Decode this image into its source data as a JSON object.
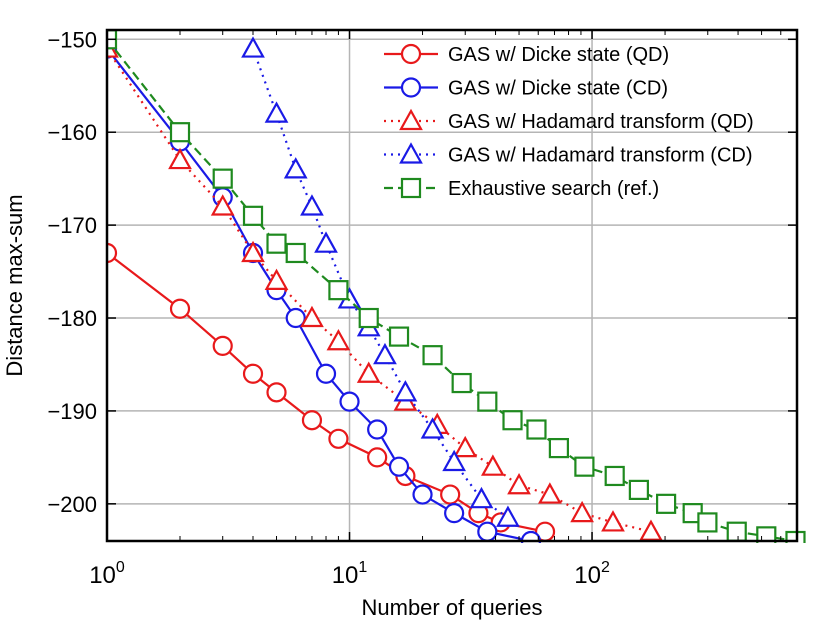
{
  "chart_data": {
    "type": "line",
    "title": "",
    "xlabel": "Number of queries",
    "ylabel": "Distance max-sum",
    "x_scale": "log",
    "xlim": [
      1,
      700
    ],
    "ylim": [
      -204,
      -149
    ],
    "grid": true,
    "legend_position": "top-right",
    "x_ticks": [
      {
        "value": 1,
        "base": "10",
        "exp": "0"
      },
      {
        "value": 10,
        "base": "10",
        "exp": "1"
      },
      {
        "value": 100,
        "base": "10",
        "exp": "2"
      }
    ],
    "y_ticks": [
      {
        "value": -150,
        "label": "−150"
      },
      {
        "value": -160,
        "label": "−160"
      },
      {
        "value": -170,
        "label": "−170"
      },
      {
        "value": -180,
        "label": "−180"
      },
      {
        "value": -190,
        "label": "−190"
      },
      {
        "value": -200,
        "label": "−200"
      }
    ],
    "series": [
      {
        "name": "GAS w/ Dicke state (QD)",
        "color": "#e8191b",
        "marker": "circle",
        "linestyle": "solid",
        "x": [
          1,
          2,
          3,
          4,
          5,
          7,
          9,
          13,
          17,
          26,
          34,
          42,
          64
        ],
        "y": [
          -173,
          -179,
          -183,
          -186,
          -188,
          -191,
          -193,
          -195,
          -197,
          -199,
          -201,
          -202,
          -203
        ]
      },
      {
        "name": "GAS w/ Dicke state (CD)",
        "color": "#1a1ae6",
        "marker": "circle",
        "linestyle": "solid",
        "x": [
          1,
          2,
          3,
          4,
          5,
          6,
          8,
          10,
          13,
          16,
          20,
          27,
          37,
          56
        ],
        "y": [
          -151,
          -161,
          -167,
          -173,
          -177,
          -180,
          -186,
          -189,
          -192,
          -196,
          -199,
          -201,
          -203,
          -204
        ]
      },
      {
        "name": "GAS w/ Hadamard transform (QD)",
        "color": "#e8191b",
        "marker": "triangle",
        "linestyle": "dotted",
        "x": [
          1,
          2,
          3,
          4,
          5,
          7,
          9,
          12,
          17,
          23,
          30,
          39,
          50,
          67,
          91,
          122,
          175
        ],
        "y": [
          -151,
          -163,
          -168,
          -173,
          -176,
          -180,
          -182.5,
          -186,
          -189,
          -191.5,
          -194,
          -196,
          -198,
          -199,
          -201,
          -202,
          -203
        ]
      },
      {
        "name": "GAS w/ Hadamard transform (CD)",
        "color": "#1a1ae6",
        "marker": "triangle",
        "linestyle": "dotted",
        "x": [
          4,
          5,
          6,
          7,
          8,
          10,
          12,
          14,
          17,
          22,
          27,
          35,
          45
        ],
        "y": [
          -151,
          -158,
          -164,
          -168,
          -172,
          -178,
          -181,
          -184,
          -188,
          -192,
          -195.5,
          -199.5,
          -201.5
        ]
      },
      {
        "name": "Exhaustive search (ref.)",
        "color": "#1f8a1f",
        "marker": "square",
        "linestyle": "dashed",
        "x": [
          1,
          2,
          3,
          4,
          5,
          6,
          9,
          12,
          16,
          22,
          29,
          37,
          47,
          59,
          73,
          93,
          124,
          156,
          202,
          260,
          299,
          395,
          523,
          690
        ],
        "y": [
          -150,
          -160,
          -165,
          -169,
          -172,
          -173,
          -177,
          -180,
          -182,
          -184,
          -187,
          -189,
          -191,
          -192,
          -194,
          -196,
          -197,
          -198.5,
          -200,
          -201,
          -202,
          -203,
          -203.5,
          -204
        ]
      }
    ]
  }
}
